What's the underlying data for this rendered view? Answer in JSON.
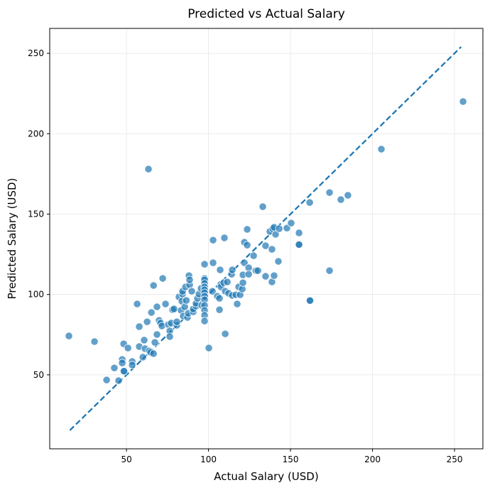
{
  "chart_data": {
    "type": "scatter",
    "title": "Predicted vs Actual Salary",
    "xlabel": "Actual Salary (USD)",
    "ylabel": "Predicted Salary (USD)",
    "xlim": [
      3.2,
      267.3
    ],
    "ylim": [
      4.0,
      265.5
    ],
    "xticks": [
      50,
      100,
      150,
      200,
      250
    ],
    "yticks": [
      50,
      100,
      150,
      200,
      250
    ],
    "grid": true,
    "colors": {
      "points": "#1f77b4",
      "reference_line": "#1f77b4"
    },
    "reference_line": {
      "style": "dashed",
      "from": [
        15.5,
        15.5
      ],
      "to": [
        254,
        254
      ]
    },
    "points": [
      [
        14.9,
        74.2
      ],
      [
        30.5,
        70.7
      ],
      [
        37.9,
        46.8
      ],
      [
        42.6,
        54.3
      ],
      [
        45.2,
        46.4
      ],
      [
        47.4,
        59.6
      ],
      [
        47.4,
        57.4
      ],
      [
        48.3,
        69.3
      ],
      [
        48.3,
        52.1
      ],
      [
        48.5,
        52.3
      ],
      [
        50.9,
        66.7
      ],
      [
        53.5,
        58.3
      ],
      [
        53.5,
        56.1
      ],
      [
        56.5,
        94.1
      ],
      [
        57.8,
        80
      ],
      [
        57.8,
        67.6
      ],
      [
        60,
        61
      ],
      [
        60.8,
        71.6
      ],
      [
        61.3,
        66.3
      ],
      [
        62.6,
        83
      ],
      [
        63.4,
        178
      ],
      [
        63.9,
        64.9
      ],
      [
        64.7,
        64
      ],
      [
        65.2,
        88.8
      ],
      [
        66.5,
        105.6
      ],
      [
        66.5,
        63.2
      ],
      [
        67.3,
        70.2
      ],
      [
        68.6,
        92.3
      ],
      [
        68.6,
        75.1
      ],
      [
        69.9,
        83.9
      ],
      [
        70.8,
        82.2
      ],
      [
        71.6,
        80.4
      ],
      [
        72.1,
        110
      ],
      [
        73.8,
        94.1
      ],
      [
        75.5,
        81.3
      ],
      [
        76.4,
        77.3
      ],
      [
        76.4,
        73.8
      ],
      [
        77.3,
        82.2
      ],
      [
        78.1,
        90.5
      ],
      [
        79,
        91
      ],
      [
        80.7,
        80.8
      ],
      [
        80.7,
        83
      ],
      [
        82,
        98.5
      ],
      [
        83.3,
        90.1
      ],
      [
        83.8,
        95.8
      ],
      [
        84.2,
        100.3
      ],
      [
        84.6,
        86.6
      ],
      [
        84.2,
        102
      ],
      [
        85.5,
        92.3
      ],
      [
        86,
        104.7
      ],
      [
        86.5,
        96.3
      ],
      [
        87.2,
        85.7
      ],
      [
        87.7,
        88.3
      ],
      [
        88.1,
        111.7
      ],
      [
        88.5,
        106
      ],
      [
        88.5,
        109.1
      ],
      [
        89.8,
        102
      ],
      [
        90.7,
        89.2
      ],
      [
        90.7,
        91
      ],
      [
        92.4,
        92.8
      ],
      [
        92.4,
        94.5
      ],
      [
        93.3,
        97.6
      ],
      [
        94.2,
        100.3
      ],
      [
        95.5,
        103.8
      ],
      [
        95.9,
        93.2
      ],
      [
        97.6,
        118.8
      ],
      [
        97.6,
        110
      ],
      [
        97.6,
        109.1
      ],
      [
        97.6,
        106.9
      ],
      [
        97.6,
        104.7
      ],
      [
        97.6,
        102.9
      ],
      [
        97.6,
        101.1
      ],
      [
        97.6,
        98.9
      ],
      [
        97.6,
        96.7
      ],
      [
        97.6,
        93.2
      ],
      [
        97.6,
        90.1
      ],
      [
        97.6,
        87
      ],
      [
        97.6,
        83.5
      ],
      [
        100.2,
        66.7
      ],
      [
        102.4,
        102
      ],
      [
        102.8,
        133.8
      ],
      [
        102.8,
        119.7
      ],
      [
        105.4,
        98.9
      ],
      [
        106.7,
        90.5
      ],
      [
        106.7,
        97.6
      ],
      [
        107.1,
        115.3
      ],
      [
        107.6,
        106.4
      ],
      [
        107.6,
        104.7
      ],
      [
        109.3,
        107.3
      ],
      [
        109.7,
        135.2
      ],
      [
        110.2,
        75.5
      ],
      [
        110.2,
        102
      ],
      [
        111.5,
        107.8
      ],
      [
        112.3,
        100.7
      ],
      [
        114.1,
        112.6
      ],
      [
        114.5,
        115.3
      ],
      [
        114.5,
        99.4
      ],
      [
        116.7,
        99.8
      ],
      [
        117.5,
        94.1
      ],
      [
        118.4,
        104.7
      ],
      [
        119.3,
        99.8
      ],
      [
        120.6,
        103.4
      ],
      [
        121,
        107.3
      ],
      [
        121,
        112.2
      ],
      [
        121.9,
        132.5
      ],
      [
        121.9,
        119.7
      ],
      [
        123.6,
        140.5
      ],
      [
        123.6,
        130.7
      ],
      [
        124.5,
        116.6
      ],
      [
        124.5,
        112.6
      ],
      [
        127.5,
        124.1
      ],
      [
        128.9,
        114.8
      ],
      [
        130.1,
        114.8
      ],
      [
        133.1,
        154.6
      ],
      [
        134.8,
        130.3
      ],
      [
        134.8,
        111.3
      ],
      [
        137.4,
        139.2
      ],
      [
        138.7,
        128.1
      ],
      [
        138.7,
        107.8
      ],
      [
        140,
        111.7
      ],
      [
        139.2,
        140.9
      ],
      [
        140,
        141.8
      ],
      [
        140.9,
        137.4
      ],
      [
        142.6,
        120.6
      ],
      [
        143.1,
        140.9
      ],
      [
        147.8,
        141.3
      ],
      [
        150.4,
        144.4
      ],
      [
        155.2,
        131.2
      ],
      [
        155.2,
        131.0
      ],
      [
        155.2,
        138.3
      ],
      [
        161.7,
        157.2
      ],
      [
        161.7,
        96.3
      ],
      [
        161.9,
        96.2
      ],
      [
        173.8,
        163.4
      ],
      [
        173.8,
        114.8
      ],
      [
        180.7,
        159
      ],
      [
        185,
        161.7
      ],
      [
        205.4,
        190.4
      ],
      [
        255.2,
        220
      ]
    ]
  }
}
